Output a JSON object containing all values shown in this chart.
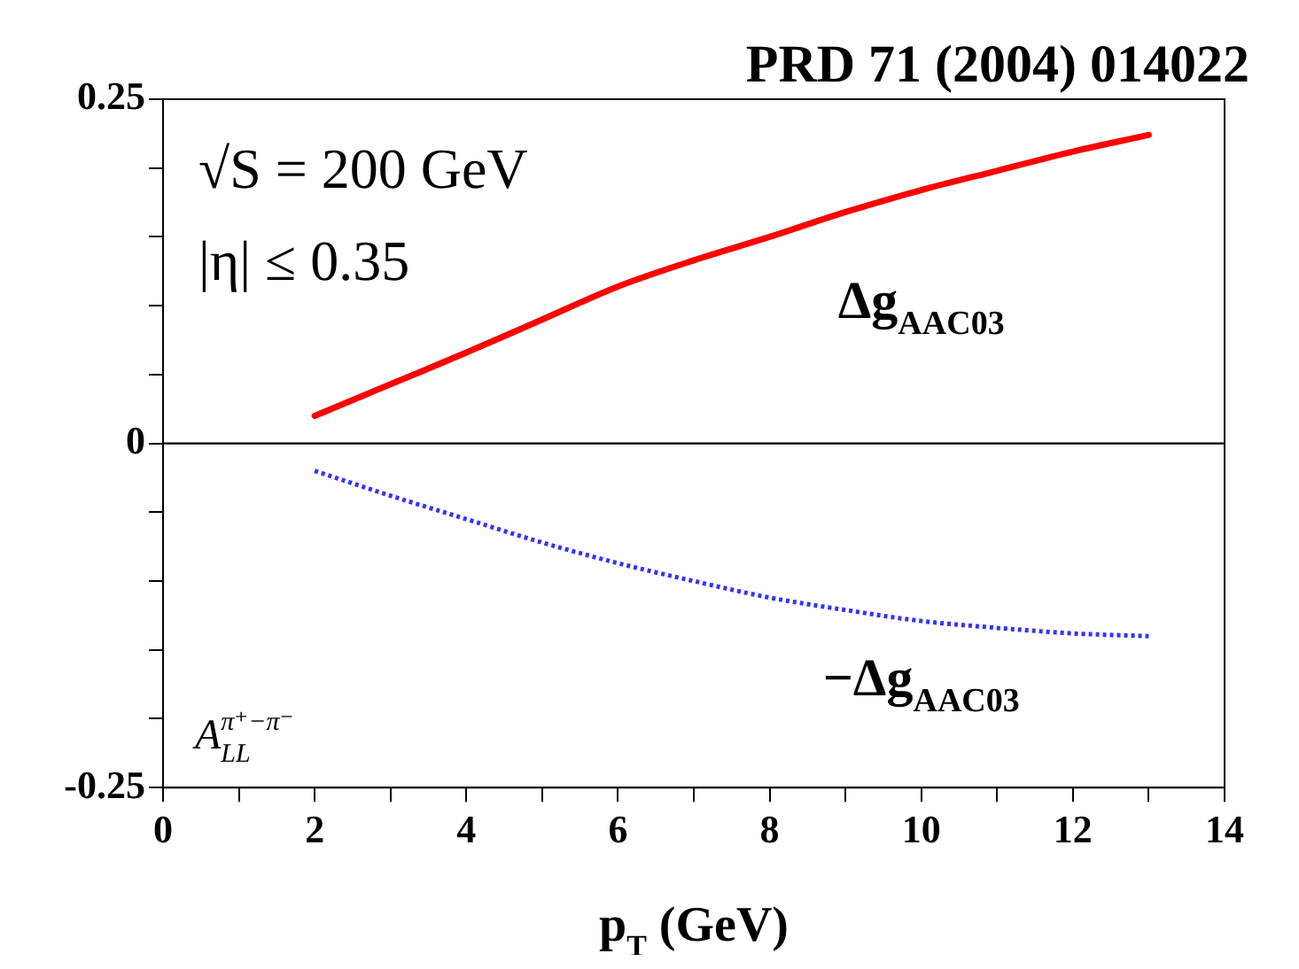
{
  "chart_data": {
    "type": "line",
    "title": "PRD 71 (2004) 014022",
    "xlabel": "p$_{T}$ (GeV)",
    "ylabel": "A$_{LL}$$^{π⁺−π⁻}$",
    "annotations": [
      "√S = 200 GeV",
      "|η| ≤ 0.35"
    ],
    "x": [
      2,
      3,
      4,
      5,
      6,
      7,
      8,
      9,
      10,
      11,
      12,
      13
    ],
    "series": [
      {
        "name": "Δg$_{AAC03}$",
        "color": "#ff0000",
        "line_style": "solid",
        "values": [
          0.02,
          0.043,
          0.066,
          0.09,
          0.114,
          0.133,
          0.15,
          0.168,
          0.184,
          0.198,
          0.212,
          0.224
        ]
      },
      {
        "name": "−Δg$_{AAC03}$",
        "color": "#3333ff",
        "line_style": "dotted",
        "values": [
          -0.02,
          -0.038,
          -0.055,
          -0.072,
          -0.087,
          -0.1,
          -0.112,
          -0.121,
          -0.129,
          -0.134,
          -0.138,
          -0.14
        ]
      }
    ],
    "xlim": [
      0,
      14
    ],
    "xticks": [
      0,
      {
        "value": 1,
        "label": null
      },
      2,
      {
        "value": 3,
        "label": null
      },
      4,
      {
        "value": 5,
        "label": null
      },
      6,
      {
        "value": 7,
        "label": null
      },
      8,
      {
        "value": 9,
        "label": null
      },
      10,
      {
        "value": 11,
        "label": null
      },
      12,
      {
        "value": 13,
        "label": null
      },
      14
    ],
    "ylim": [
      -0.25,
      0.25
    ],
    "yticks": [
      -0.25,
      {
        "value": -0.2,
        "label": null
      },
      {
        "value": -0.15,
        "label": null
      },
      {
        "value": -0.1,
        "label": null
      },
      {
        "value": -0.05,
        "label": null
      },
      0,
      {
        "value": 0.05,
        "label": null
      },
      {
        "value": 0.1,
        "label": null
      },
      {
        "value": 0.15,
        "label": null
      },
      {
        "value": 0.2,
        "label": null
      },
      0.25
    ],
    "ref_lines": [
      {
        "axis": "y",
        "value": 0,
        "color": "#000000"
      }
    ],
    "grid": false,
    "legend": false,
    "marker": "none"
  }
}
